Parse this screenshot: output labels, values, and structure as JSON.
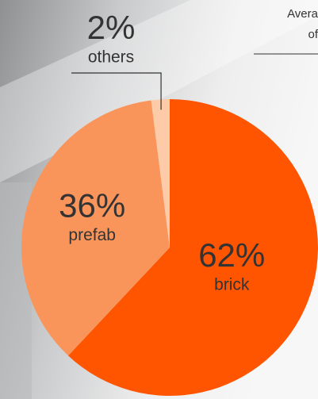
{
  "chart_data": {
    "type": "pie",
    "categories": [
      "brick",
      "prefab",
      "others"
    ],
    "values": [
      62,
      36,
      2
    ],
    "value_labels": [
      "62%",
      "36%",
      "2%"
    ],
    "colors": [
      "#ff5500",
      "#f9955a",
      "#fdcba8"
    ],
    "annotations": [
      "Avera",
      "of"
    ]
  }
}
